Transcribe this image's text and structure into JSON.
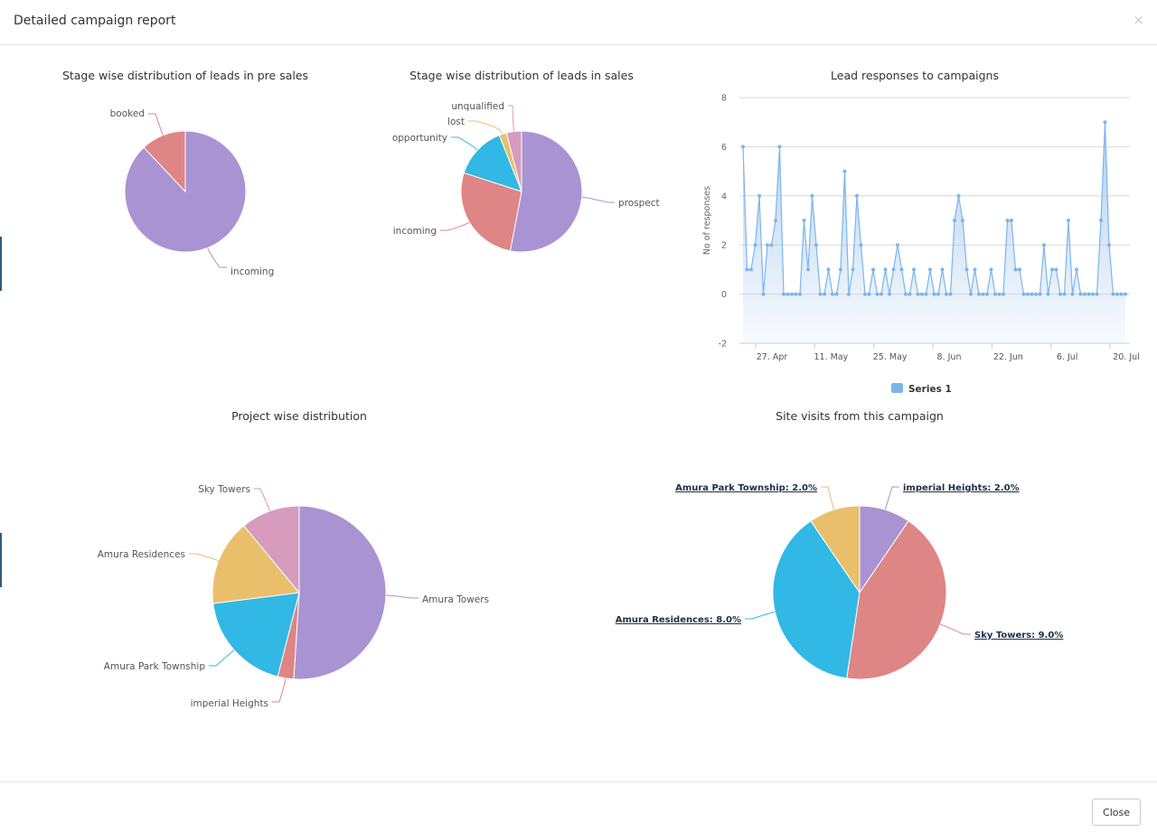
{
  "modal": {
    "title": "Detailed campaign report",
    "close_icon": "×",
    "close_button": "Close"
  },
  "colors": {
    "purple": "#a993d3",
    "red": "#de8585",
    "blue": "#31b8e5",
    "yellow": "#e9bf6c",
    "pink": "#d69bbd",
    "area": "#aecdf0",
    "line": "#7cb5ec"
  },
  "chart_data": [
    {
      "type": "pie",
      "title": "Stage wise distribution of leads in pre sales",
      "slices": [
        {
          "label": "incoming",
          "value": 88,
          "color": "#a993d3"
        },
        {
          "label": "booked",
          "value": 12,
          "color": "#de8585"
        }
      ]
    },
    {
      "type": "pie",
      "title": "Stage wise distribution of leads in sales",
      "slices": [
        {
          "label": "prospect",
          "value": 53,
          "color": "#a993d3"
        },
        {
          "label": "incoming",
          "value": 27,
          "color": "#de8585"
        },
        {
          "label": "opportunity",
          "value": 14,
          "color": "#31b8e5"
        },
        {
          "label": "lost",
          "value": 2,
          "color": "#e9bf6c"
        },
        {
          "label": "unqualified",
          "value": 4,
          "color": "#d69bbd"
        }
      ]
    },
    {
      "type": "area",
      "title": "Lead responses to campaigns",
      "ylabel": "No of responses",
      "xlabel": "",
      "ylim": [
        -2,
        8
      ],
      "yticks": [
        -2,
        0,
        2,
        4,
        6,
        8
      ],
      "x_tick_labels": [
        "27. Apr",
        "11. May",
        "25. May",
        "8. Jun",
        "22. Jun",
        "6. Jul",
        "20. Jul"
      ],
      "grid": true,
      "legend": "bottom-center",
      "series": [
        {
          "name": "Series 1",
          "values": [
            6,
            1,
            1,
            2,
            4,
            0,
            2,
            2,
            3,
            6,
            0,
            0,
            0,
            0,
            0,
            3,
            1,
            4,
            2,
            0,
            0,
            1,
            0,
            0,
            1,
            5,
            0,
            1,
            4,
            2,
            0,
            0,
            1,
            0,
            0,
            1,
            0,
            1,
            2,
            1,
            0,
            0,
            1,
            0,
            0,
            0,
            1,
            0,
            0,
            1,
            0,
            0,
            3,
            4,
            3,
            1,
            0,
            1,
            0,
            0,
            0,
            1,
            0,
            0,
            0,
            3,
            3,
            1,
            1,
            0,
            0,
            0,
            0,
            0,
            2,
            0,
            1,
            1,
            0,
            0,
            3,
            0,
            1,
            0,
            0,
            0,
            0,
            0,
            3,
            7,
            2,
            0,
            0,
            0,
            0
          ]
        }
      ]
    },
    {
      "type": "pie",
      "title": "Project wise distribution",
      "slices": [
        {
          "label": "Amura Towers",
          "value": 51,
          "color": "#a993d3"
        },
        {
          "label": "imperial Heights",
          "value": 3,
          "color": "#de8585"
        },
        {
          "label": "Amura Park Township",
          "value": 19,
          "color": "#31b8e5"
        },
        {
          "label": "Amura Residences",
          "value": 16,
          "color": "#e9bf6c"
        },
        {
          "label": "Sky Towers",
          "value": 11,
          "color": "#d69bbd"
        }
      ]
    },
    {
      "type": "pie",
      "title": "Site visits from this campaign",
      "slices": [
        {
          "label": "imperial Heights: 2.0%",
          "value": 2,
          "color": "#a993d3"
        },
        {
          "label": "Sky Towers: 9.0%",
          "value": 9,
          "color": "#de8585"
        },
        {
          "label": "Amura Residences: 8.0%",
          "value": 8,
          "color": "#31b8e5"
        },
        {
          "label": "Amura Park Township: 2.0%",
          "value": 2,
          "color": "#e9bf6c"
        }
      ]
    }
  ]
}
